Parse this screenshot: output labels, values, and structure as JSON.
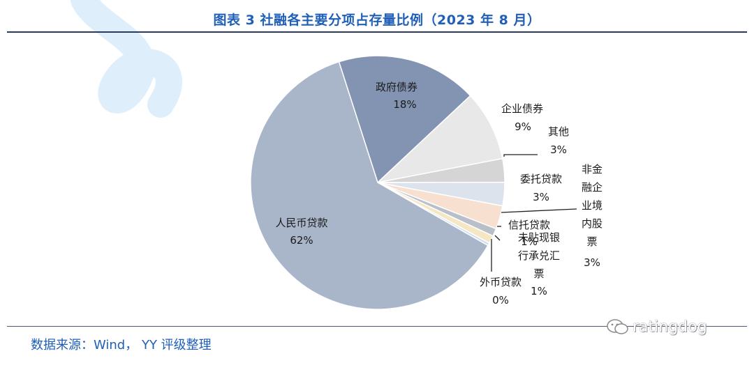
{
  "header": {
    "title": "图表 3 社融各主要分项占存量比例（2023 年 8 月）"
  },
  "footer": {
    "source": "数据来源：Wind， YY 评级整理",
    "watermark": "ratingdog"
  },
  "chart_data": {
    "type": "pie",
    "title": "图表 3 社融各主要分项占存量比例（2023 年 8 月）",
    "slices": [
      {
        "name": "政府债券",
        "value": 18,
        "label": "18%",
        "color": "#8394b3"
      },
      {
        "name": "企业债券",
        "value": 9,
        "label": "9%",
        "color": "#e8e8e8"
      },
      {
        "name": "其他",
        "value": 3,
        "label": "3%",
        "color": "#d5d5d5"
      },
      {
        "name": "委托贷款",
        "value": 3,
        "label": "3%",
        "color": "#dde3ec"
      },
      {
        "name": "非金融企业境内股票",
        "value": 3,
        "label": "3%",
        "color": "#f7e0d0"
      },
      {
        "name": "信托贷款",
        "value": 1,
        "label": "1%",
        "color": "#b9bfc9"
      },
      {
        "name": "未贴现银行承兑汇票",
        "value": 1,
        "label": "1%",
        "color": "#f5e7c4"
      },
      {
        "name": "外币贷款",
        "value": 0,
        "label": "0%",
        "color": "#cfe0f3"
      },
      {
        "name": "人民币贷款",
        "value": 62,
        "label": "62%",
        "color": "#a9b5c9"
      }
    ]
  }
}
